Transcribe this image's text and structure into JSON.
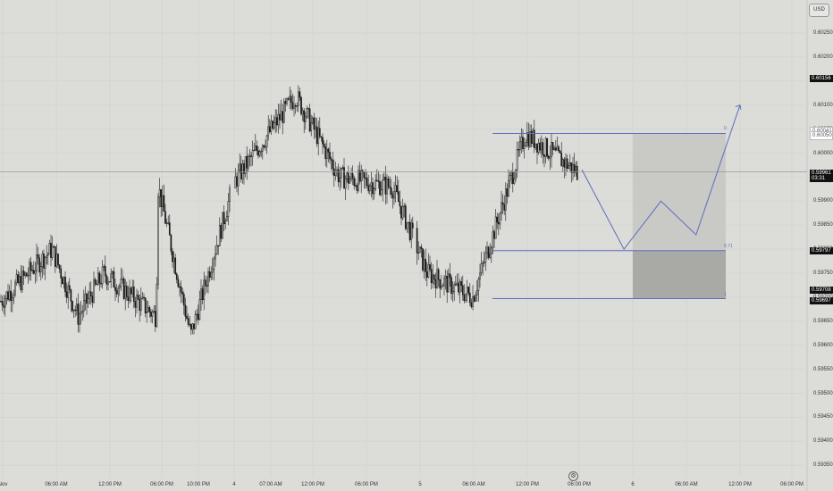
{
  "currency": "USD",
  "price_axis_ticks": [
    "0.60250",
    "0.60200",
    "0.60150",
    "0.60100",
    "0.60050",
    "0.60000",
    "0.59950",
    "0.59900",
    "0.59850",
    "0.59800",
    "0.59750",
    "0.59700",
    "0.59650",
    "0.59600",
    "0.59550",
    "0.59500",
    "0.59450",
    "0.59400",
    "0.59350"
  ],
  "time_axis_ticks": [
    "Nov",
    "06:00 AM",
    "12:00 PM",
    "06:00 PM",
    "10:00 PM",
    "4",
    "07:00 AM",
    "12:00 PM",
    "06:00 PM",
    "5",
    "06:00 AM",
    "12:00 PM",
    "06:00 PM",
    "6",
    "06:00 AM",
    "12:00 PM",
    "06:00 PM"
  ],
  "price_labels": {
    "high_marker": "0.60156",
    "fib_top": "0.60041",
    "fib_top_alt": "0.60050",
    "current_price": "0.59961",
    "countdown": "03:31",
    "fib_mid": "0.59797",
    "fib_low": "0.59708",
    "fib_base": "0.59697"
  },
  "fib_levels": [
    "0",
    "0.71",
    "1"
  ],
  "settings_icon": "gear-icon",
  "colors": {
    "background": "#dcdcd9",
    "candle": "#1a1a1a",
    "fib_line": "#5a6fbf",
    "zone_light": "#c9c9c6",
    "zone_dark": "#a9a9a6",
    "current_price_line": "#999999"
  },
  "chart_data": {
    "type": "candlestick",
    "symbol_currency": "USD",
    "ylim": [
      0.5933,
      0.6031
    ],
    "current_price": 0.59961,
    "x_sessions": [
      "Nov",
      "4",
      "5",
      "6"
    ],
    "fibonacci": [
      {
        "level": "0",
        "price": 0.60041
      },
      {
        "level": "0.71",
        "price": 0.59797
      },
      {
        "level": "1",
        "price": 0.59697
      }
    ],
    "close_path_keypoints": [
      {
        "t": "Nov 00:00",
        "price": 0.5969
      },
      {
        "t": "Nov 06:00 AM",
        "price": 0.598
      },
      {
        "t": "Nov 09:00 AM",
        "price": 0.5966
      },
      {
        "t": "Nov 12:00 PM",
        "price": 0.5975
      },
      {
        "t": "Nov 06:00 PM",
        "price": 0.5966
      },
      {
        "t": "Nov 06:15 PM",
        "price": 0.5993
      },
      {
        "t": "Nov 10:00 PM",
        "price": 0.5962
      },
      {
        "t": "4 00:00",
        "price": 0.5994
      },
      {
        "t": "4 07:00 AM",
        "price": 0.6012
      },
      {
        "t": "4 12:00 PM",
        "price": 0.5995
      },
      {
        "t": "4 06:00 PM",
        "price": 0.5993
      },
      {
        "t": "4 10:00 PM",
        "price": 0.5975
      },
      {
        "t": "5 06:00 AM",
        "price": 0.597
      },
      {
        "t": "5 12:00 PM",
        "price": 0.6004
      },
      {
        "t": "5 06:00 PM",
        "price": 0.5996
      }
    ],
    "projection": [
      {
        "t": "5 06:00 PM",
        "price": 0.5996
      },
      {
        "t": "5 11:00 PM",
        "price": 0.598
      },
      {
        "t": "6 03:00 AM",
        "price": 0.599
      },
      {
        "t": "6 07:00 AM",
        "price": 0.5983
      },
      {
        "t": "6 12:00 PM",
        "price": 0.601
      }
    ]
  }
}
